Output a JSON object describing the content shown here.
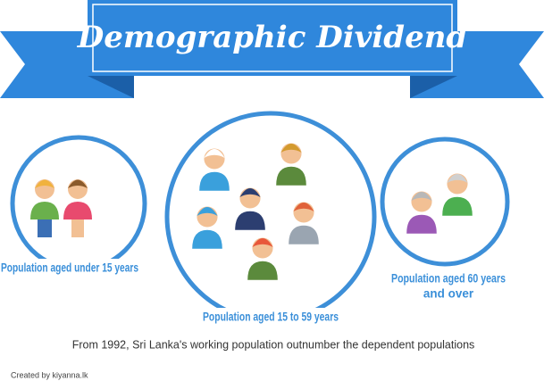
{
  "header": {
    "title": "Demographic Dividend"
  },
  "groups": [
    {
      "label": [
        "Population aged under 15 years"
      ]
    },
    {
      "label": [
        "Population aged 15 to 59 years"
      ]
    },
    {
      "label": [
        "Population aged 60 years",
        "and over"
      ]
    }
  ],
  "footer": {
    "note": "From 1992, Sri Lanka's working population outnumber the dependent populations",
    "credit": "Created by kiyanna.lk"
  }
}
